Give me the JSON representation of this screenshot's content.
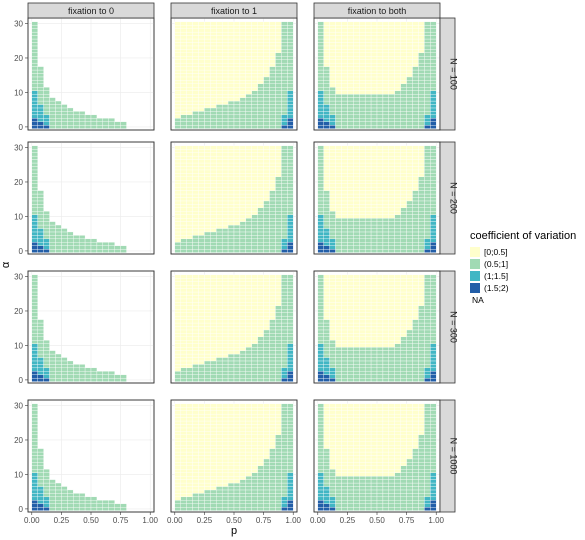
{
  "chart_data": {
    "type": "heatmap",
    "facet_columns": [
      "fixation to 0",
      "fixation to 1",
      "fixation to both"
    ],
    "facet_rows": [
      "N = 100",
      "N = 200",
      "N = 300",
      "N = 1000"
    ],
    "xlabel": "p",
    "ylabel": "α",
    "x_ticks": [
      "0.00",
      "0.25",
      "0.50",
      "0.75",
      "1.00"
    ],
    "y_ticks": [
      "0",
      "10",
      "20",
      "30"
    ],
    "xlim": [
      0,
      1
    ],
    "ylim": [
      0,
      30
    ],
    "x_values": [
      0.025,
      0.075,
      0.125,
      0.175,
      0.225,
      0.275,
      0.325,
      0.375,
      0.425,
      0.475,
      0.525,
      0.575,
      0.625,
      0.675,
      0.725,
      0.775,
      0.825,
      0.875,
      0.925,
      0.975
    ],
    "y_values": [
      0.5,
      1.5,
      2.5,
      3.5,
      4.5,
      5.5,
      6.5,
      7.5,
      8.5,
      9.5,
      10.5,
      11.5,
      12.5,
      13.5,
      14.5,
      15.5,
      16.5,
      17.5,
      18.5,
      19.5,
      20.5,
      21.5,
      22.5,
      23.5,
      24.5,
      25.5,
      26.5,
      27.5,
      28.5,
      29.5,
      30.5
    ],
    "legend": {
      "title": "coefficient of variation",
      "entries": [
        {
          "label": "[0;0.5]",
          "color": "#ffffcc"
        },
        {
          "label": "(0.5;1]",
          "color": "#a1dab4"
        },
        {
          "label": "(1;1.5]",
          "color": "#41b6c4"
        },
        {
          "label": "(1.5;2)",
          "color": "#225ea8"
        },
        {
          "label": "NA",
          "color": ""
        }
      ]
    },
    "panels": {
      "fixation to 0": {
        "description": "values per x column: tile category by α range",
        "columns": [
          {
            "x": 0.025,
            "dark_max": 2,
            "mid_max": 10,
            "light_max": 30
          },
          {
            "x": 0.075,
            "dark_max": 1,
            "mid_max": 6,
            "light_max": 17
          },
          {
            "x": 0.125,
            "dark_max": 0,
            "mid_max": 3,
            "light_max": 11
          },
          {
            "x": 0.175,
            "dark_max": -1,
            "mid_max": -1,
            "light_max": 8
          },
          {
            "x": 0.225,
            "dark_max": -1,
            "mid_max": -1,
            "light_max": 7
          },
          {
            "x": 0.275,
            "dark_max": -1,
            "mid_max": -1,
            "light_max": 6
          },
          {
            "x": 0.325,
            "dark_max": -1,
            "mid_max": -1,
            "light_max": 5
          },
          {
            "x": 0.375,
            "dark_max": -1,
            "mid_max": -1,
            "light_max": 4
          },
          {
            "x": 0.425,
            "dark_max": -1,
            "mid_max": -1,
            "light_max": 4
          },
          {
            "x": 0.475,
            "dark_max": -1,
            "mid_max": -1,
            "light_max": 3
          },
          {
            "x": 0.525,
            "dark_max": -1,
            "mid_max": -1,
            "light_max": 3
          },
          {
            "x": 0.575,
            "dark_max": -1,
            "mid_max": -1,
            "light_max": 2
          },
          {
            "x": 0.625,
            "dark_max": -1,
            "mid_max": -1,
            "light_max": 2
          },
          {
            "x": 0.675,
            "dark_max": -1,
            "mid_max": -1,
            "light_max": 2
          },
          {
            "x": 0.725,
            "dark_max": -1,
            "mid_max": -1,
            "light_max": 1
          },
          {
            "x": 0.775,
            "dark_max": -1,
            "mid_max": -1,
            "light_max": 1
          }
        ]
      },
      "fixation to 1": {
        "columns": [
          {
            "x": 0.025,
            "green_max": 2
          },
          {
            "x": 0.075,
            "green_max": 3
          },
          {
            "x": 0.125,
            "green_max": 3
          },
          {
            "x": 0.175,
            "green_max": 4
          },
          {
            "x": 0.225,
            "green_max": 4
          },
          {
            "x": 0.275,
            "green_max": 5
          },
          {
            "x": 0.325,
            "green_max": 5
          },
          {
            "x": 0.375,
            "green_max": 6
          },
          {
            "x": 0.425,
            "green_max": 6
          },
          {
            "x": 0.475,
            "green_max": 7
          },
          {
            "x": 0.525,
            "green_max": 7
          },
          {
            "x": 0.575,
            "green_max": 8
          },
          {
            "x": 0.625,
            "green_max": 9
          },
          {
            "x": 0.675,
            "green_max": 10
          },
          {
            "x": 0.725,
            "green_max": 12
          },
          {
            "x": 0.775,
            "green_max": 14
          },
          {
            "x": 0.825,
            "green_max": 17
          },
          {
            "x": 0.875,
            "green_max": 21
          },
          {
            "x": 0.925,
            "green_max": 30,
            "teal_max": 3,
            "dark_max": 0
          },
          {
            "x": 0.975,
            "green_max": 30,
            "teal_max": 10,
            "dark_max": 2
          }
        ]
      },
      "fixation to both": {
        "columns": [
          {
            "x": 0.025,
            "green_max": 30,
            "teal_max": 10,
            "dark_max": 2
          },
          {
            "x": 0.075,
            "green_max": 17,
            "teal_max": 6,
            "dark_max": 1
          },
          {
            "x": 0.125,
            "green_max": 11,
            "teal_max": 3,
            "dark_max": 0
          },
          {
            "x": 0.175,
            "green_max": 9
          },
          {
            "x": 0.225,
            "green_max": 9
          },
          {
            "x": 0.275,
            "green_max": 9
          },
          {
            "x": 0.325,
            "green_max": 9
          },
          {
            "x": 0.375,
            "green_max": 9
          },
          {
            "x": 0.425,
            "green_max": 9
          },
          {
            "x": 0.475,
            "green_max": 9
          },
          {
            "x": 0.525,
            "green_max": 9
          },
          {
            "x": 0.575,
            "green_max": 9
          },
          {
            "x": 0.625,
            "green_max": 9
          },
          {
            "x": 0.675,
            "green_max": 10
          },
          {
            "x": 0.725,
            "green_max": 12
          },
          {
            "x": 0.775,
            "green_max": 14
          },
          {
            "x": 0.825,
            "green_max": 17
          },
          {
            "x": 0.875,
            "green_max": 21
          },
          {
            "x": 0.925,
            "green_max": 30,
            "teal_max": 3,
            "dark_max": 0
          },
          {
            "x": 0.975,
            "green_max": 30,
            "teal_max": 10,
            "dark_max": 2
          }
        ]
      }
    },
    "grid": true,
    "legend_position": "right"
  }
}
